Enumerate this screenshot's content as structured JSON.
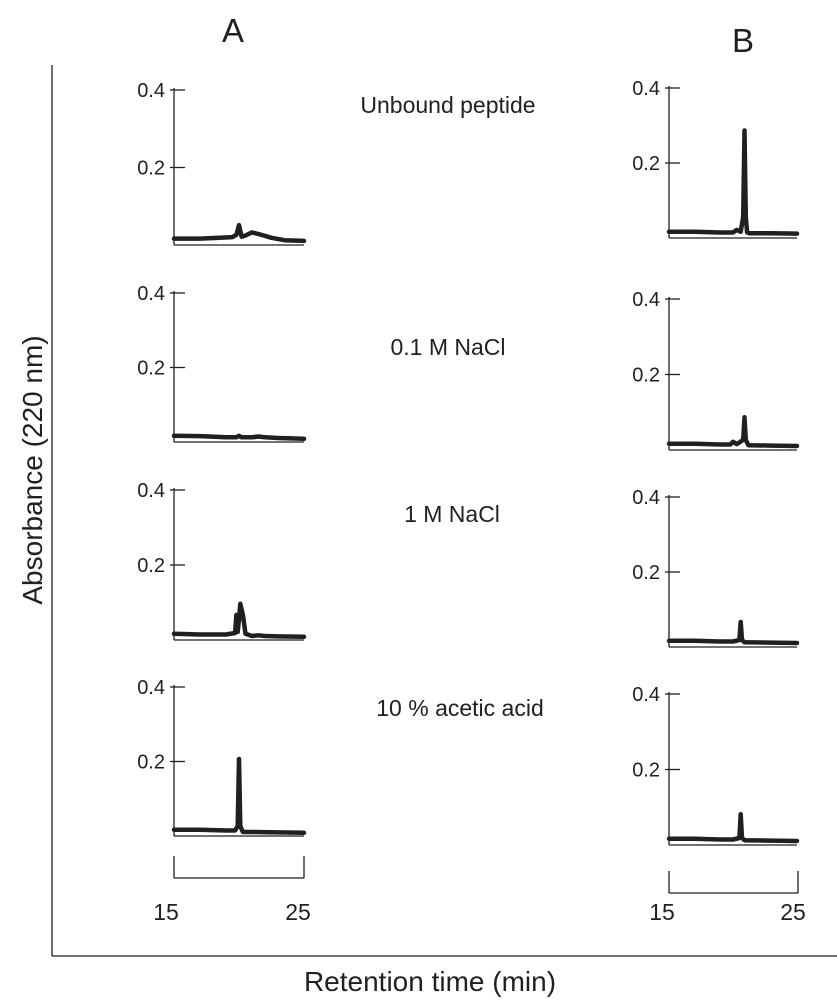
{
  "figure": {
    "panel_a_label": "A",
    "panel_b_label": "B",
    "xlabel": "Retention time (min)",
    "ylabel": "Absorbance (220 nm)",
    "conditions": [
      "Unbound peptide",
      "0.1 M NaCl",
      "1 M NaCl",
      "10 % acetic acid"
    ]
  },
  "chart_data": {
    "type": "line",
    "xlabel": "Retention time (min)",
    "ylabel": "Absorbance (220 nm)",
    "xlim": [
      15,
      25
    ],
    "ylim": [
      0,
      0.4
    ],
    "x_ticks": [
      15,
      25
    ],
    "y_ticks": [
      0.2,
      0.4
    ],
    "panels": [
      {
        "panel": "A",
        "charts": [
          {
            "condition": "Unbound peptide",
            "x": [
              15,
              17,
              18.5,
              19.5,
              19.8,
              20.0,
              20.2,
              20.5,
              21.0,
              21.5,
              22.5,
              23.5,
              25
            ],
            "y": [
              0.01,
              0.01,
              0.012,
              0.014,
              0.02,
              0.045,
              0.015,
              0.018,
              0.026,
              0.022,
              0.012,
              0.006,
              0.004
            ]
          },
          {
            "condition": "0.1 M NaCl",
            "x": [
              15,
              17,
              19,
              19.8,
              20,
              20.2,
              21,
              21.5,
              22,
              23,
              25
            ],
            "y": [
              0.01,
              0.009,
              0.006,
              0.006,
              0.01,
              0.006,
              0.006,
              0.008,
              0.006,
              0.004,
              0.002
            ]
          },
          {
            "condition": "1 M NaCl",
            "x": [
              15,
              17,
              19,
              19.7,
              19.8,
              19.9,
              20.0,
              20.1,
              20.3,
              20.5,
              21.0,
              21.5,
              22,
              23,
              25
            ],
            "y": [
              0.01,
              0.008,
              0.008,
              0.012,
              0.06,
              0.015,
              0.05,
              0.09,
              0.06,
              0.01,
              0.004,
              0.006,
              0.004,
              0.003,
              0.002
            ]
          },
          {
            "condition": "10 % acetic acid",
            "x": [
              15,
              17,
              19,
              19.7,
              19.9,
              20.0,
              20.1,
              20.3,
              21,
              23,
              25
            ],
            "y": [
              0.01,
              0.01,
              0.008,
              0.008,
              0.02,
              0.2,
              0.02,
              0.004,
              0.004,
              0.003,
              0.002
            ]
          }
        ]
      },
      {
        "panel": "B",
        "charts": [
          {
            "condition": "Unbound peptide",
            "x": [
              15,
              17,
              19,
              20,
              20.3,
              20.6,
              20.8,
              20.9,
              21.0,
              21.1,
              21.3,
              23,
              25
            ],
            "y": [
              0.01,
              0.01,
              0.008,
              0.008,
              0.015,
              0.01,
              0.05,
              0.28,
              0.05,
              0.008,
              0.006,
              0.006,
              0.005
            ]
          },
          {
            "condition": "0.1 M NaCl",
            "x": [
              15,
              17,
              19,
              19.8,
              20.0,
              20.3,
              20.8,
              20.9,
              21.0,
              21.2,
              23,
              25
            ],
            "y": [
              0.01,
              0.01,
              0.008,
              0.008,
              0.015,
              0.009,
              0.02,
              0.08,
              0.02,
              0.006,
              0.005,
              0.004
            ]
          },
          {
            "condition": "1 M NaCl",
            "x": [
              15,
              17,
              19,
              20,
              20.5,
              20.6,
              20.7,
              20.9,
              23,
              25
            ],
            "y": [
              0.01,
              0.01,
              0.008,
              0.008,
              0.012,
              0.06,
              0.012,
              0.006,
              0.005,
              0.004
            ]
          },
          {
            "condition": "10 % acetic acid",
            "x": [
              15,
              17,
              19,
              20,
              20.5,
              20.6,
              20.7,
              20.9,
              23,
              25
            ],
            "y": [
              0.01,
              0.01,
              0.008,
              0.008,
              0.012,
              0.075,
              0.012,
              0.006,
              0.005,
              0.004
            ]
          }
        ]
      }
    ]
  }
}
